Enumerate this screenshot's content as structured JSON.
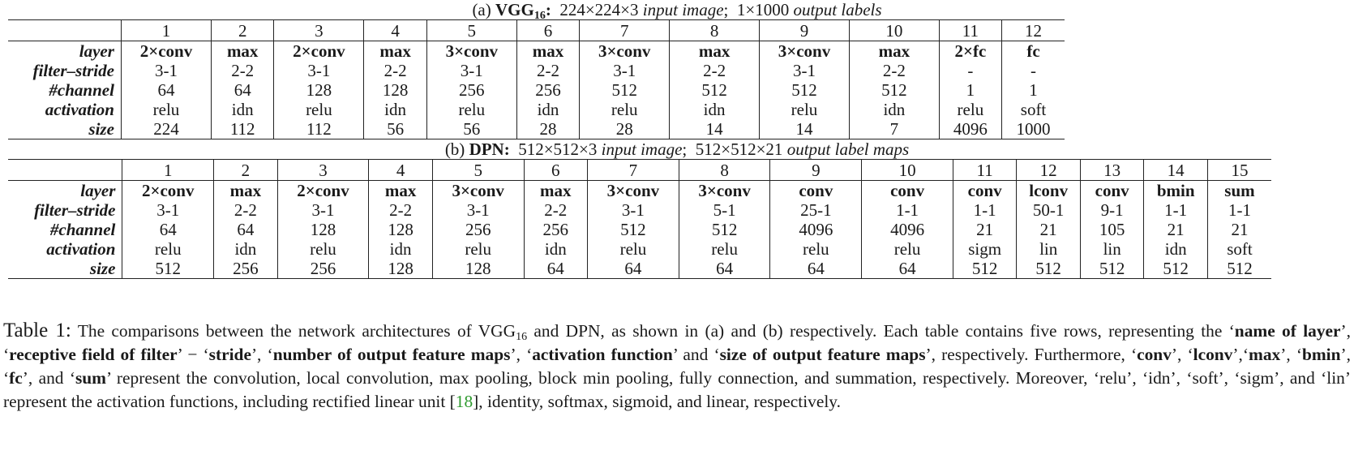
{
  "table_a": {
    "caption_prefix": "(a)",
    "caption_name": "VGG",
    "caption_sub": "16",
    "caption_colon": ":",
    "caption_input_dims": "224×224×3",
    "caption_input_label": "input image",
    "caption_sep": ";",
    "caption_output_dims": "1×1000",
    "caption_output_label": "output labels",
    "columns": [
      "1",
      "2",
      "3",
      "4",
      "5",
      "6",
      "7",
      "8",
      "9",
      "10",
      "11",
      "12"
    ],
    "row_labels": [
      "layer",
      "filter–stride",
      "#channel",
      "activation",
      "size"
    ],
    "layer": [
      "2×conv",
      "max",
      "2×conv",
      "max",
      "3×conv",
      "max",
      "3×conv",
      "max",
      "3×conv",
      "max",
      "2×fc",
      "fc"
    ],
    "filter_stride": [
      "3-1",
      "2-2",
      "3-1",
      "2-2",
      "3-1",
      "2-2",
      "3-1",
      "2-2",
      "3-1",
      "2-2",
      "-",
      "-"
    ],
    "channel": [
      "64",
      "64",
      "128",
      "128",
      "256",
      "256",
      "512",
      "512",
      "512",
      "512",
      "1",
      "1"
    ],
    "activation": [
      "relu",
      "idn",
      "relu",
      "idn",
      "relu",
      "idn",
      "relu",
      "idn",
      "relu",
      "idn",
      "relu",
      "soft"
    ],
    "size": [
      "224",
      "112",
      "112",
      "56",
      "56",
      "28",
      "28",
      "14",
      "14",
      "7",
      "4096",
      "1000"
    ]
  },
  "table_b": {
    "caption_prefix": "(b)",
    "caption_name": "DPN:",
    "caption_input_dims": "512×512×3",
    "caption_input_label": "input image",
    "caption_sep": ";",
    "caption_output_dims": "512×512×21",
    "caption_output_label": "output label maps",
    "columns": [
      "1",
      "2",
      "3",
      "4",
      "5",
      "6",
      "7",
      "8",
      "9",
      "10",
      "11",
      "12",
      "13",
      "14",
      "15"
    ],
    "row_labels": [
      "layer",
      "filter–stride",
      "#channel",
      "activation",
      "size"
    ],
    "layer": [
      "2×conv",
      "max",
      "2×conv",
      "max",
      "3×conv",
      "max",
      "3×conv",
      "3×conv",
      "conv",
      "conv",
      "conv",
      "lconv",
      "conv",
      "bmin",
      "sum"
    ],
    "filter_stride": [
      "3-1",
      "2-2",
      "3-1",
      "2-2",
      "3-1",
      "2-2",
      "3-1",
      "5-1",
      "25-1",
      "1-1",
      "1-1",
      "50-1",
      "9-1",
      "1-1",
      "1-1"
    ],
    "channel": [
      "64",
      "64",
      "128",
      "128",
      "256",
      "256",
      "512",
      "512",
      "4096",
      "4096",
      "21",
      "21",
      "105",
      "21",
      "21"
    ],
    "activation": [
      "relu",
      "idn",
      "relu",
      "idn",
      "relu",
      "idn",
      "relu",
      "relu",
      "relu",
      "relu",
      "sigm",
      "lin",
      "lin",
      "idn",
      "soft"
    ],
    "size": [
      "512",
      "256",
      "256",
      "128",
      "128",
      "64",
      "64",
      "64",
      "64",
      "64",
      "512",
      "512",
      "512",
      "512",
      "512"
    ]
  },
  "caption": {
    "label": "Table 1:",
    "s1": "The comparisons between the network architectures of VGG",
    "s1_sub": "16",
    "s2": " and DPN, as shown in (a) and (b) respectively. Each table contains five rows, representing the ‘",
    "b1": "name of layer",
    "s3": "’, ‘",
    "b2": "receptive field of filter",
    "s4": "’ − ‘",
    "b3": "stride",
    "s5": "’, ‘",
    "b4": "number of output feature maps",
    "s6": "’, ‘",
    "b5": "activation function",
    "s7": "’ and ‘",
    "b6": "size of output feature maps",
    "s8": "’, respectively. Furthermore, ‘",
    "b7": "conv",
    "s9": "’, ‘",
    "b8": "lconv",
    "s10": "’,‘",
    "b9": "max",
    "s11": "’, ‘",
    "b10": "bmin",
    "s12": "’, ‘",
    "b11": "fc",
    "s13": "’, and ‘",
    "b12": "sum",
    "s14": "’ represent the convolution, local convolution, max pooling, block min pooling, fully connection, and summation, respectively. Moreover, ‘relu’, ‘idn’, ‘soft’, ‘sigm’, and ‘lin’ represent the activation functions, including rectified linear unit [",
    "cite": "18",
    "s15": "], identity, softmax, sigmoid, and linear, respectively."
  }
}
